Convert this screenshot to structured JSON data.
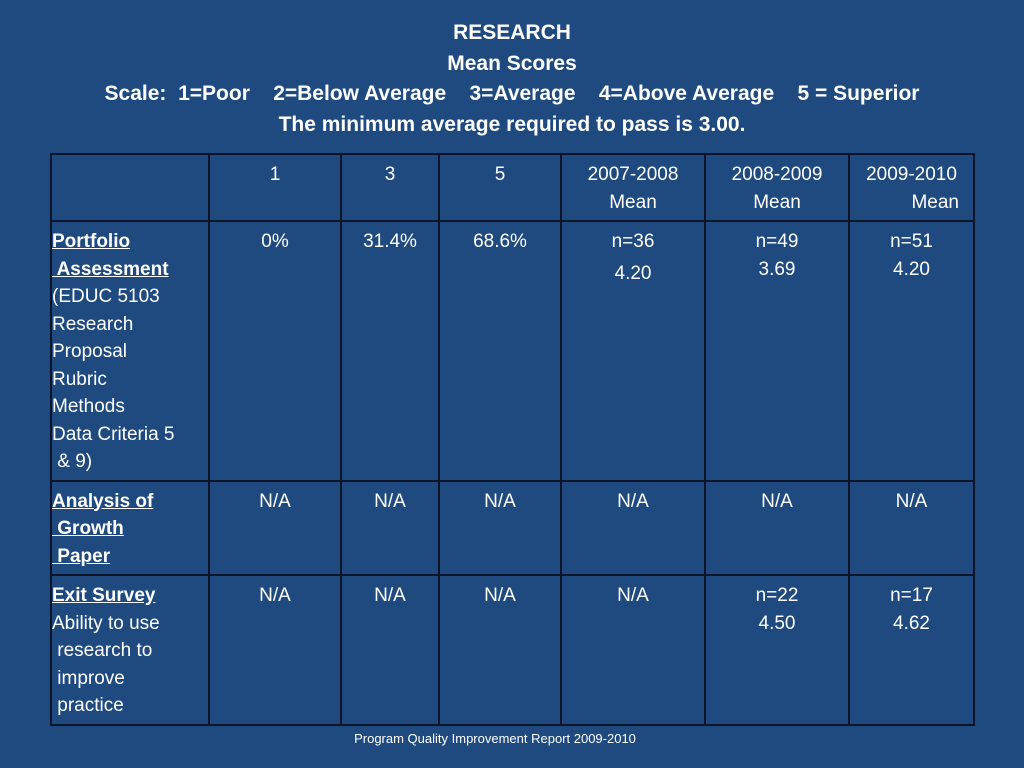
{
  "title": {
    "line1": "RESEARCH",
    "line2": "Mean Scores",
    "line3": "Scale:  1=Poor    2=Below Average    3=Average    4=Above Average    5 = Superior",
    "line4": "The minimum average required to pass is 3.00."
  },
  "table": {
    "headers": [
      {
        "line1": "",
        "line2": ""
      },
      {
        "line1": "1",
        "line2": ""
      },
      {
        "line1": "3",
        "line2": ""
      },
      {
        "line1": "5",
        "line2": ""
      },
      {
        "line1": "2007-2008",
        "line2": "Mean"
      },
      {
        "line1": "2008-2009",
        "line2": "Mean"
      },
      {
        "line1": "2009-2010",
        "line2": "Mean"
      }
    ],
    "rows": [
      {
        "label_underlined": [
          "Portfolio",
          " Assessment"
        ],
        "label_plain": [
          "(EDUC 5103",
          "Research",
          "Proposal",
          "Rubric",
          "Methods",
          "Data Criteria 5",
          " & 9)"
        ],
        "cells": [
          {
            "line1": "0%",
            "line2": ""
          },
          {
            "line1": "31.4%",
            "line2": ""
          },
          {
            "line1": "68.6%",
            "line2": ""
          },
          {
            "line1": "n=36",
            "line2": "4.20"
          },
          {
            "line1": "n=49",
            "line2": "3.69"
          },
          {
            "line1": "n=51",
            "line2": "4.20"
          }
        ]
      },
      {
        "label_underlined": [
          "Analysis of",
          " Growth",
          " Paper"
        ],
        "label_plain": [],
        "cells": [
          {
            "line1": "N/A",
            "line2": ""
          },
          {
            "line1": "N/A",
            "line2": ""
          },
          {
            "line1": "N/A",
            "line2": ""
          },
          {
            "line1": "N/A",
            "line2": ""
          },
          {
            "line1": "N/A",
            "line2": ""
          },
          {
            "line1": "N/A",
            "line2": ""
          }
        ]
      },
      {
        "label_underlined": [
          "Exit Survey"
        ],
        "label_plain": [
          "Ability to use",
          " research to",
          " improve",
          " practice"
        ],
        "cells": [
          {
            "line1": "N/A",
            "line2": ""
          },
          {
            "line1": "N/A",
            "line2": ""
          },
          {
            "line1": "N/A",
            "line2": ""
          },
          {
            "line1": "N/A",
            "line2": ""
          },
          {
            "line1": "n=22",
            "line2": "4.50"
          },
          {
            "line1": "n=17",
            "line2": "4.62"
          }
        ]
      }
    ]
  },
  "footer": "Program Quality Improvement Report  2009-2010",
  "colors": {
    "background": "#1f4a80",
    "text": "#ffffff",
    "border": "#0b1428"
  }
}
